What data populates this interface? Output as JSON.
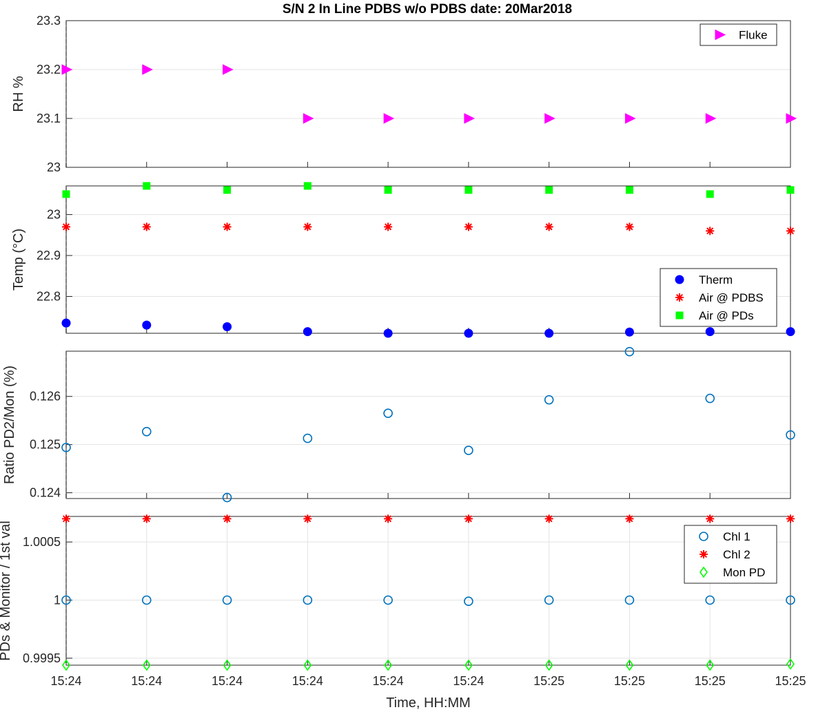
{
  "chart_data": [
    {
      "type": "scatter",
      "title": "S/N 2 In Line PDBS w/o PDBS date: 20Mar2018",
      "ylabel": "RH %",
      "ylim": [
        23,
        23.3
      ],
      "yticks": [
        "23",
        "23.1",
        "23.2",
        "23.3"
      ],
      "ytick_values": [
        23,
        23.1,
        23.2,
        23.3
      ],
      "grid": "horizontal",
      "legend_position": "top-right",
      "series": [
        {
          "name": "Fluke",
          "marker": "triangle-right",
          "color": "#ff00ff",
          "values": [
            23.2,
            23.2,
            23.2,
            23.1,
            23.1,
            23.1,
            23.1,
            23.1,
            23.1,
            23.1
          ]
        }
      ]
    },
    {
      "type": "scatter",
      "ylabel": "Temp (°C)",
      "ylim": [
        22.71,
        23.07
      ],
      "yticks": [
        "22.8",
        "22.9",
        "23"
      ],
      "ytick_values": [
        22.8,
        22.9,
        23.0
      ],
      "grid": "horizontal",
      "legend_position": "bottom-right",
      "series": [
        {
          "name": "Therm",
          "marker": "filled-circle",
          "color": "#0000ff",
          "values": [
            22.735,
            22.73,
            22.726,
            22.714,
            22.71,
            22.71,
            22.71,
            22.713,
            22.714,
            22.714
          ]
        },
        {
          "name": "Air @ PDBS",
          "marker": "asterisk",
          "color": "#ff0000",
          "values": [
            22.97,
            22.97,
            22.97,
            22.97,
            22.97,
            22.97,
            22.97,
            22.97,
            22.96,
            22.96
          ]
        },
        {
          "name": "Air @ PDs",
          "marker": "filled-square",
          "color": "#00ff00",
          "values": [
            23.05,
            23.07,
            23.06,
            23.07,
            23.06,
            23.06,
            23.06,
            23.06,
            23.05,
            23.06
          ]
        }
      ]
    },
    {
      "type": "scatter",
      "ylabel": "Ratio PD2/Mon (%)",
      "ylim": [
        0.12388,
        0.12694
      ],
      "yticks": [
        "0.124",
        "0.125",
        "0.126"
      ],
      "ytick_values": [
        0.124,
        0.125,
        0.126
      ],
      "grid": "horizontal",
      "series": [
        {
          "name": "",
          "marker": "open-circle",
          "color": "#0072bd",
          "values": [
            0.12494,
            0.12527,
            0.1239,
            0.12513,
            0.12565,
            0.12488,
            0.12593,
            0.12693,
            0.12596,
            0.1252
          ]
        }
      ]
    },
    {
      "type": "scatter",
      "ylabel": "PDs & Monitor / 1st val",
      "xlabel": "Time, HH:MM",
      "ylim": [
        0.99944,
        1.00072
      ],
      "yticks": [
        "0.9995",
        "1",
        "1.0005"
      ],
      "ytick_values": [
        0.9995,
        1.0,
        1.0005
      ],
      "grid": "both",
      "legend_position": "top-right",
      "categories": [
        "15:24",
        "15:24",
        "15:24",
        "15:24",
        "15:24",
        "15:24",
        "15:25",
        "15:25",
        "15:25",
        "15:25"
      ],
      "series": [
        {
          "name": "Chl 1",
          "marker": "open-circle",
          "color": "#0072bd",
          "values": [
            1.0,
            1.0,
            1.0,
            1.0,
            1.0,
            0.99999,
            1.0,
            1.0,
            1.0,
            1.0
          ]
        },
        {
          "name": "Chl 2",
          "marker": "asterisk",
          "color": "#ff0000",
          "values": [
            1.0007,
            1.0007,
            1.0007,
            1.0007,
            1.0007,
            1.0007,
            1.0007,
            1.0007,
            1.0007,
            1.0007
          ]
        },
        {
          "name": "Mon PD",
          "marker": "open-diamond",
          "color": "#00ff00",
          "values": [
            0.99944,
            0.99944,
            0.99944,
            0.99944,
            0.99944,
            0.99944,
            0.99944,
            0.99944,
            0.99944,
            0.99945
          ]
        }
      ]
    }
  ]
}
